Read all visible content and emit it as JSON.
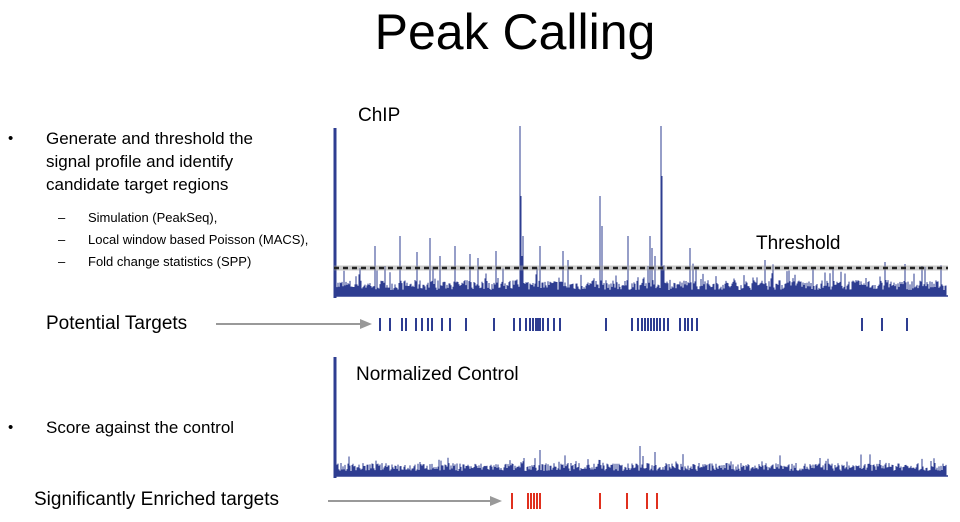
{
  "title": "Peak Calling",
  "bullets": [
    {
      "text": "Generate and threshold the signal profile and identify candidate target regions",
      "subitems": [
        "Simulation (PeakSeq),",
        "Local window based Poisson (MACS),",
        "Fold change statistics (SPP)"
      ]
    },
    {
      "text": "Score against the control"
    }
  ],
  "labels": {
    "chip": "ChIP",
    "threshold": "Threshold",
    "potential_targets": "Potential Targets",
    "normalized_control": "Normalized Control",
    "significant_targets": "Significantly Enriched targets"
  },
  "colors": {
    "signal": "#2e3d91",
    "threshold_line": "#222222",
    "enriched": "#e0301e",
    "arrow": "#999999"
  }
}
